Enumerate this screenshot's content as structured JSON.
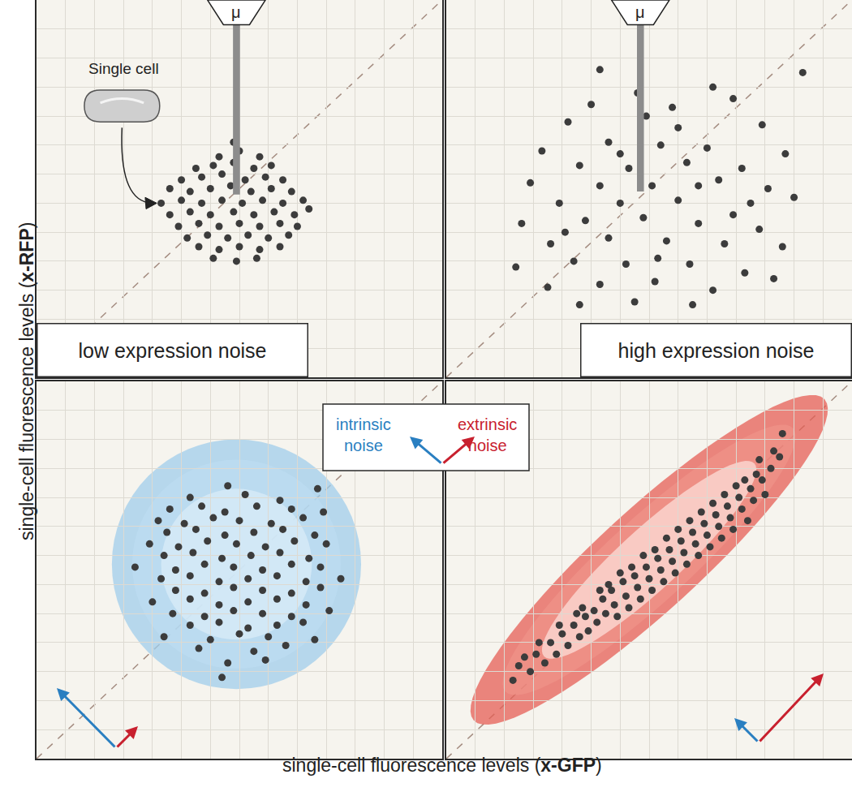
{
  "figure": {
    "x_label": "single-cell fluorescence levels (x-GFP)",
    "y_label": "single-cell fluorescence levels (x-RFP)",
    "noise_key": [
      {
        "text": "intrinsic noise",
        "color": "#2a7fc1"
      },
      {
        "text": "extrinsic noise",
        "color": "#c8202e"
      }
    ]
  },
  "chart_data": [
    {
      "type": "scatter",
      "label": "low expression noise",
      "annotations": [
        {
          "text": "Single cell"
        },
        {
          "text": "μ"
        }
      ],
      "color": "#3c3c3c",
      "xlim": [
        0,
        14
      ],
      "ylim": [
        0,
        13
      ],
      "xticks": [
        0,
        1,
        2,
        3,
        4,
        5,
        6,
        7,
        8,
        9,
        10,
        11,
        12,
        13,
        14
      ],
      "yticks": [
        0,
        1,
        2,
        3,
        4,
        5,
        6,
        7,
        8,
        9,
        10,
        11,
        12,
        13
      ],
      "grid": true,
      "tick_labels": false,
      "x": [
        6.8,
        6.3,
        7.0,
        7.7,
        5.5,
        6.1,
        6.8,
        7.5,
        8.1,
        5.0,
        5.7,
        6.4,
        7.2,
        7.9,
        8.5,
        4.6,
        5.3,
        6.0,
        6.7,
        7.4,
        8.1,
        8.8,
        4.3,
        5.0,
        5.7,
        6.4,
        7.1,
        7.8,
        8.5,
        9.2,
        4.6,
        5.3,
        6.0,
        6.8,
        7.5,
        8.2,
        8.9,
        9.4,
        4.9,
        5.6,
        6.3,
        7.0,
        7.7,
        8.4,
        9.0,
        5.2,
        5.9,
        6.6,
        7.3,
        8.0,
        8.7,
        5.6,
        6.3,
        7.0,
        7.7,
        8.4,
        6.1,
        6.9,
        7.6
      ],
      "y": [
        8.1,
        7.6,
        7.8,
        7.6,
        7.2,
        7.3,
        7.4,
        7.2,
        7.3,
        6.8,
        6.9,
        7.0,
        6.8,
        6.9,
        6.8,
        6.5,
        6.4,
        6.5,
        6.6,
        6.4,
        6.5,
        6.4,
        6.0,
        6.1,
        6.0,
        6.1,
        6.0,
        6.1,
        6.0,
        6.1,
        5.6,
        5.7,
        5.6,
        5.7,
        5.6,
        5.7,
        5.6,
        5.8,
        5.2,
        5.3,
        5.2,
        5.3,
        5.2,
        5.3,
        5.2,
        4.8,
        4.9,
        4.8,
        4.9,
        4.8,
        4.9,
        4.5,
        4.4,
        4.5,
        4.4,
        4.5,
        4.1,
        4.0,
        4.1
      ]
    },
    {
      "type": "scatter",
      "label": "high expression noise",
      "annotations": [
        {
          "text": "μ"
        }
      ],
      "color": "#3c3c3c",
      "xlim": [
        0,
        14
      ],
      "ylim": [
        0,
        13
      ],
      "xticks": [
        0,
        1,
        2,
        3,
        4,
        5,
        6,
        7,
        8,
        9,
        10,
        11,
        12,
        13,
        14
      ],
      "yticks": [
        0,
        1,
        2,
        3,
        4,
        5,
        6,
        7,
        8,
        9,
        10,
        11,
        12,
        13
      ],
      "grid": true,
      "tick_labels": false,
      "x": [
        5.3,
        12.3,
        6.6,
        9.9,
        6.9,
        4.2,
        8.0,
        10.9,
        3.3,
        5.6,
        7.4,
        9.0,
        11.7,
        4.6,
        6.3,
        8.3,
        10.2,
        2.9,
        5.3,
        7.1,
        9.4,
        11.1,
        3.9,
        6.0,
        8.0,
        10.5,
        12.0,
        2.6,
        4.8,
        6.8,
        8.7,
        10.8,
        3.6,
        5.6,
        7.6,
        9.6,
        11.6,
        2.4,
        4.4,
        6.2,
        8.4,
        10.3,
        3.5,
        5.3,
        7.2,
        9.2,
        11.3,
        4.6,
        6.5,
        8.5,
        7.8,
        9.2,
        5.0,
        6.0,
        8.7,
        4.1,
        9.9,
        7.3
      ],
      "y": [
        10.6,
        10.5,
        9.8,
        9.6,
        9.0,
        8.8,
        8.6,
        8.7,
        7.8,
        8.1,
        8.0,
        7.9,
        7.7,
        7.3,
        7.2,
        7.4,
        7.2,
        6.7,
        6.6,
        6.6,
        6.8,
        6.5,
        6.0,
        6.0,
        6.1,
        6.0,
        6.2,
        5.3,
        5.4,
        5.5,
        5.3,
        5.1,
        4.6,
        4.8,
        4.7,
        4.6,
        4.5,
        3.8,
        4.0,
        3.9,
        3.9,
        3.6,
        3.1,
        3.2,
        3.3,
        3.0,
        3.4,
        2.5,
        2.6,
        2.5,
        9.3,
        10.0,
        9.4,
        7.7,
        6.6,
        5.0,
        5.6,
        4.1
      ]
    },
    {
      "type": "scatter",
      "color": "#3c3c3c",
      "xlim": [
        0,
        14
      ],
      "ylim": [
        0,
        13
      ],
      "xticks": [
        0,
        1,
        2,
        3,
        4,
        5,
        6,
        7,
        8,
        9,
        10,
        11,
        12,
        13,
        14
      ],
      "yticks": [
        0,
        1,
        2,
        3,
        4,
        5,
        6,
        7,
        8,
        9,
        10,
        11,
        12,
        13
      ],
      "grid": true,
      "tick_labels": false,
      "x": [
        6.6,
        9.7,
        5.3,
        7.2,
        8.4,
        4.6,
        5.7,
        6.5,
        7.6,
        8.8,
        9.9,
        4.2,
        5.1,
        6.1,
        7.0,
        8.1,
        9.2,
        4.5,
        5.5,
        6.5,
        7.5,
        8.5,
        9.6,
        3.9,
        4.9,
        5.9,
        6.9,
        7.9,
        8.9,
        10.0,
        4.4,
        5.4,
        6.4,
        7.4,
        8.4,
        9.4,
        3.4,
        4.8,
        5.8,
        6.8,
        7.8,
        8.8,
        9.8,
        4.3,
        5.3,
        6.3,
        7.3,
        8.3,
        9.3,
        10.5,
        4.8,
        5.8,
        6.8,
        7.8,
        8.8,
        9.8,
        4.0,
        5.3,
        6.3,
        7.3,
        8.3,
        9.3,
        4.7,
        5.8,
        6.8,
        7.8,
        8.8,
        10.1,
        5.3,
        6.3,
        7.3,
        8.3,
        9.2,
        4.4,
        6.0,
        7.0,
        8.0,
        9.6,
        5.6,
        7.5,
        8.6,
        6.6,
        7.9,
        6.4
      ],
      "y": [
        9.4,
        9.3,
        9.0,
        9.1,
        8.9,
        8.6,
        8.7,
        8.5,
        8.7,
        8.6,
        8.5,
        8.2,
        8.1,
        8.3,
        8.2,
        8.1,
        8.3,
        7.8,
        7.9,
        7.7,
        7.8,
        7.9,
        7.7,
        7.4,
        7.3,
        7.5,
        7.4,
        7.3,
        7.5,
        7.4,
        7.0,
        7.1,
        6.9,
        7.0,
        7.1,
        6.9,
        6.6,
        6.5,
        6.7,
        6.6,
        6.5,
        6.7,
        6.6,
        6.2,
        6.3,
        6.1,
        6.2,
        6.3,
        6.1,
        6.2,
        5.8,
        5.7,
        5.9,
        5.8,
        5.7,
        5.9,
        5.4,
        5.5,
        5.3,
        5.4,
        5.5,
        5.3,
        5.0,
        4.9,
        5.1,
        5.0,
        4.9,
        5.1,
        4.6,
        4.7,
        4.5,
        4.6,
        4.7,
        4.2,
        4.1,
        4.3,
        4.2,
        4.1,
        3.8,
        3.7,
        3.9,
        3.3,
        3.4,
        2.8
      ]
    },
    {
      "type": "scatter",
      "color": "#3c3c3c",
      "xlim": [
        0,
        14
      ],
      "ylim": [
        0,
        13
      ],
      "xticks": [
        0,
        1,
        2,
        3,
        4,
        5,
        6,
        7,
        8,
        9,
        10,
        11,
        12,
        13,
        14
      ],
      "yticks": [
        0,
        1,
        2,
        3,
        4,
        5,
        6,
        7,
        8,
        9,
        10,
        11,
        12,
        13
      ],
      "grid": true,
      "tick_labels": false,
      "x": [
        2.3,
        2.5,
        2.9,
        3.1,
        3.4,
        3.6,
        3.8,
        4.0,
        4.2,
        4.4,
        4.6,
        4.8,
        4.9,
        5.1,
        5.2,
        5.4,
        5.5,
        5.7,
        5.8,
        5.9,
        6.1,
        6.2,
        6.3,
        6.5,
        6.6,
        6.7,
        6.9,
        7.0,
        7.1,
        7.3,
        7.4,
        7.5,
        7.7,
        7.8,
        7.9,
        8.1,
        8.2,
        8.3,
        8.5,
        8.6,
        8.7,
        8.9,
        9.0,
        9.1,
        9.3,
        9.4,
        9.5,
        9.7,
        9.8,
        9.9,
        10.1,
        10.2,
        10.4,
        10.5,
        10.6,
        10.9,
        11.0,
        11.2,
        11.3,
        11.6,
        10.8,
        10.7,
        10.3,
        9.6,
        8.8,
        8.0,
        7.2,
        6.4,
        5.6,
        4.7,
        3.9,
        3.2,
        2.7,
        9.2,
        8.4,
        7.6,
        6.8,
        6.0,
        5.3,
        4.5,
        10.0,
        11.5
      ],
      "y": [
        2.7,
        3.2,
        3.0,
        3.6,
        3.3,
        4.0,
        3.6,
        4.3,
        3.9,
        4.6,
        4.2,
        4.9,
        4.4,
        5.1,
        4.7,
        5.5,
        5.0,
        5.8,
        5.3,
        4.9,
        6.1,
        5.6,
        5.2,
        6.3,
        5.9,
        5.5,
        6.6,
        6.2,
        5.8,
        6.9,
        6.5,
        6.1,
        7.2,
        6.8,
        6.4,
        7.5,
        7.1,
        6.7,
        7.8,
        7.4,
        7.0,
        8.1,
        7.7,
        7.3,
        8.4,
        8.0,
        7.6,
        8.7,
        8.3,
        7.9,
        9.0,
        8.6,
        8.2,
        9.3,
        8.9,
        9.6,
        9.1,
        10.0,
        10.6,
        11.2,
        10.3,
        9.8,
        9.6,
        9.1,
        8.5,
        7.9,
        7.2,
        6.6,
        6.0,
        5.2,
        4.6,
        4.0,
        3.5,
        8.8,
        8.2,
        7.6,
        7.0,
        6.4,
        5.8,
        5.0,
        9.4,
        10.4
      ]
    }
  ]
}
